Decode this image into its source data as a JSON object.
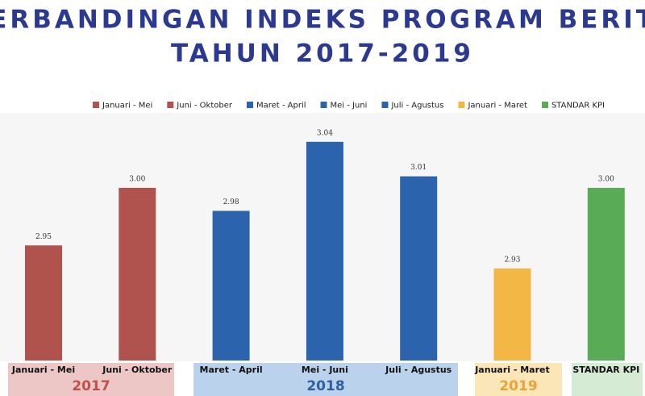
{
  "chart_data": {
    "type": "bar",
    "title": [
      "PERBANDINGAN INDEKS PROGRAM BERITA",
      "TAHUN 2017-2019"
    ],
    "ylim": [
      2.85,
      3.07
    ],
    "groups": [
      {
        "name": "2017",
        "color": "#b0524d",
        "box_color": "#ecc7c6",
        "label_color": "#c0504d",
        "bars": [
          {
            "name": "Januari - Mei",
            "value": 2.95,
            "value_label": "2.95"
          },
          {
            "name": "Juni - Oktober",
            "value": 3.0,
            "value_label": "3.00"
          }
        ]
      },
      {
        "name": "2018",
        "color": "#2c63ad",
        "box_color": "#bad2eb",
        "label_color": "#2e5f9e",
        "bars": [
          {
            "name": "Maret - April",
            "value": 2.98,
            "value_label": "2.98"
          },
          {
            "name": "Mei - Juni",
            "value": 3.04,
            "value_label": "3.04"
          },
          {
            "name": "Juli - Agustus",
            "value": 3.01,
            "value_label": "3.01"
          }
        ]
      },
      {
        "name": "2019",
        "color": "#f2b744",
        "box_color": "#fbe6b8",
        "label_color": "#e8a33a",
        "bars": [
          {
            "name": "Januari - Maret",
            "value": 2.93,
            "value_label": "2.93"
          }
        ]
      },
      {
        "color": "#5aab55",
        "box_color": "#d6ebd3",
        "bars": [
          {
            "name": "STANDAR KPI",
            "value": 3.0,
            "value_label": "3.00"
          }
        ]
      }
    ]
  }
}
